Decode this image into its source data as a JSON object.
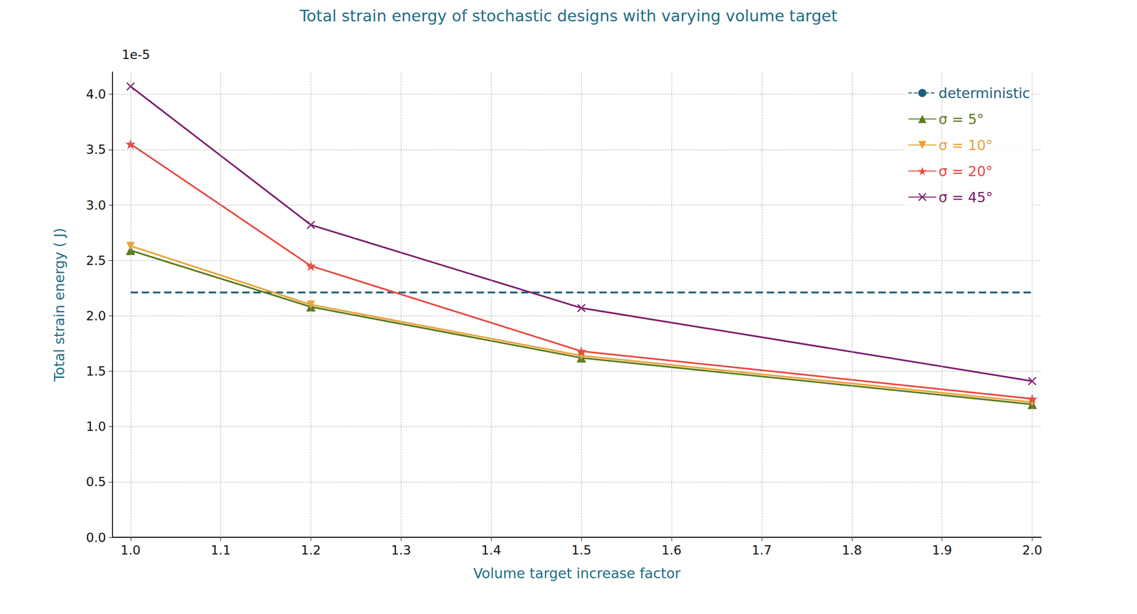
{
  "chart_data": {
    "type": "line",
    "title": "Total strain energy of stochastic designs with varying volume target",
    "x_label": "Volume target increase factor",
    "y_label": "Total strain energy ( J)",
    "y_offset_text": "1e-5",
    "x": [
      1.0,
      1.2,
      1.5,
      2.0
    ],
    "series": [
      {
        "name": "deterministic",
        "color": "#1f5f7a",
        "line_style": "dashed",
        "marker": "none",
        "values": [
          2.21,
          2.21,
          2.21,
          2.21
        ]
      },
      {
        "name": "σ = 5°",
        "color": "#5b7a1c",
        "line_style": "solid",
        "marker": "triangle",
        "values": [
          2.59,
          2.08,
          1.62,
          1.2
        ]
      },
      {
        "name": "σ = 10°",
        "color": "#e9a236",
        "line_style": "solid",
        "marker": "triangle-down",
        "values": [
          2.63,
          2.1,
          1.64,
          1.22
        ]
      },
      {
        "name": "σ = 20°",
        "color": "#e8463d",
        "line_style": "solid",
        "marker": "star",
        "values": [
          3.55,
          2.45,
          1.68,
          1.25
        ]
      },
      {
        "name": "σ = 45°",
        "color": "#7b1c6c",
        "line_style": "solid",
        "marker": "x",
        "values": [
          4.07,
          2.82,
          2.07,
          1.41
        ]
      }
    ],
    "xlim": [
      0.98,
      2.01
    ],
    "xticks": [
      {
        "value": 1.0,
        "label": "1.0"
      },
      1.1,
      1.2,
      1.3,
      1.4,
      1.5,
      1.6,
      1.7,
      1.8,
      1.9,
      {
        "value": 2.0,
        "label": "2.0"
      }
    ],
    "ylim": [
      0,
      4.2
    ],
    "yticks": [
      {
        "value": 0,
        "label": "0.0"
      },
      0.5,
      {
        "value": 1,
        "label": "1.0"
      },
      1.5,
      {
        "value": 2,
        "label": "2.0"
      },
      2.5,
      {
        "value": 3,
        "label": "3.0"
      },
      3.5,
      {
        "value": 4,
        "label": "4.0"
      }
    ],
    "grid": true,
    "legend": "upper right"
  }
}
